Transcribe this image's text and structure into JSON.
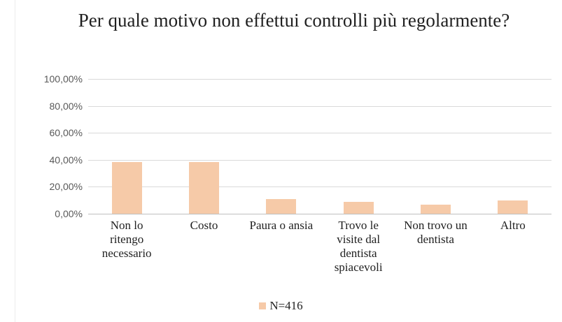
{
  "chart_data": {
    "type": "bar",
    "title": "Per quale motivo non effettui controlli più regolarmente?",
    "series_name": "N=416",
    "categories": [
      "Non lo ritengo necessario",
      "Costo",
      "Paura o ansia",
      "Trovo le visite dal dentista spiacevoli",
      "Non trovo un dentista",
      "Altro"
    ],
    "category_lines": [
      [
        "Non lo",
        "ritengo",
        "necessario"
      ],
      [
        "Costo"
      ],
      [
        "Paura o ansia"
      ],
      [
        "Trovo le",
        "visite dal",
        "dentista",
        "spiacevoli"
      ],
      [
        "Non trovo un",
        "dentista"
      ],
      [
        "Altro"
      ]
    ],
    "values": [
      38.5,
      38.5,
      11,
      9,
      7,
      10
    ],
    "unit": "%",
    "ylim": [
      0,
      100
    ],
    "y_tick_step": 20,
    "y_tick_labels": [
      "100,00%",
      "80,00%",
      "60,00%",
      "40,00%",
      "20,00%",
      "0,00%"
    ],
    "grid": true,
    "legend_position": "bottom",
    "colors": {
      "bar": "#F6CAA8",
      "gridline": "#D9D9D9",
      "axis_line": "#BFBFBF",
      "y_tick_text": "#595959",
      "text": "#1F1F1F",
      "background": "#FFFFFF"
    }
  }
}
